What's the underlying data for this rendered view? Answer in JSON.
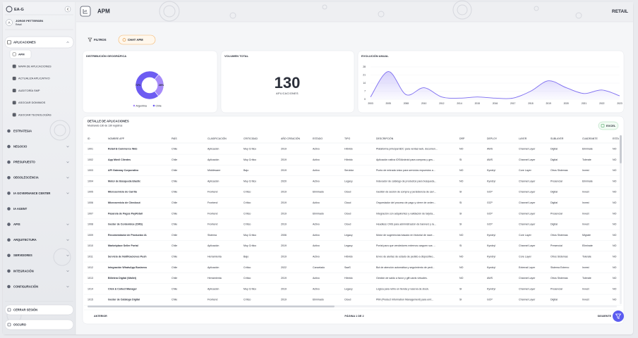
{
  "sidebar": {
    "brand": "EA-G",
    "avatar": "A",
    "user": "JORGE PETTERSEN",
    "role": "Retail",
    "active_section": "APLICACIONES",
    "submenu": [
      "APM",
      "MAPA DE APLICACIONES",
      "ACTUALIZA APLICATIVO",
      "AUDITORÍA SMP",
      "ASOCIAR DOMINIOS",
      "ASOCIAR TECNOLOGÍAS"
    ],
    "menu": [
      "ESTRATEGIA",
      "NEGOCIO",
      "PRESUPUESTO",
      "OBSOLESCENCIA",
      "IA GOVERNANCE CENTER",
      "IA AGENT",
      "APIS",
      "ARQUITECTURA",
      "SERVIDORES",
      "INTEGRACIÓN",
      "CONFIGURACIÓN"
    ],
    "logout": "CERRAR SESIÓN",
    "theme": "OSCURO"
  },
  "header": {
    "title": "APM",
    "tenant": "RETAIL"
  },
  "toolbar": {
    "filters": "FILTROS",
    "chat": "CHAT APM"
  },
  "cards": {
    "geo": {
      "title": "DISTRIBUCIÓN GEOGRÁFICA",
      "type": "pie",
      "slices": [
        {
          "name": "Argentina",
          "value": 28,
          "value_label": "28%",
          "color": "#a78bfa"
        },
        {
          "name": "Chile",
          "value": 72,
          "value_label": "72%",
          "color": "#6d5cf2"
        }
      ]
    },
    "volume": {
      "title": "VOLUMEN TOTAL",
      "value": 130,
      "unit": "APLICACIONES"
    },
    "evolution": {
      "title": "EVOLUCIÓN ANUAL",
      "type": "line",
      "color": "#7c6cf0",
      "grid": true,
      "categories": [
        "2003",
        "2005",
        "2008",
        "2010",
        "2012",
        "2014",
        "2015",
        "2016",
        "2017",
        "2018",
        "2019",
        "2020",
        "2021",
        "2022",
        "2023"
      ],
      "values": [
        2,
        24,
        4,
        10,
        2,
        1,
        2,
        1,
        1,
        7,
        16,
        10,
        5,
        8,
        3
      ],
      "ylim": [
        0,
        28
      ],
      "yticks": [
        0,
        7,
        14,
        21,
        28
      ]
    }
  },
  "table": {
    "title": "DETALLE DE APLICACIONES",
    "subtitle": "Mostrando 130 de 130 registros",
    "export": "EXCEL",
    "columns": [
      "ID",
      "NOMBRE APP",
      "PAÍS",
      "CLASIFICACIÓN",
      "CRITICIDAD",
      "AÑO CREACIÓN",
      "ESTADO",
      "TIPO",
      "DESCRIPCIÓN",
      "DRP",
      "DEPLOY",
      "LAYER",
      "SUBLAYER",
      "CUADRANTE",
      "ESTA"
    ],
    "rows": [
      [
        "1001",
        "Retail E-Commerce Web",
        "Chile",
        "Aplicación",
        "Muy Crítico",
        "2019",
        "Activo",
        "Híbrido",
        "Plataforma principal B2C para ventas web, documen...",
        "NO",
        "AWS",
        "Channel Layer",
        "Digital",
        "Eliminate",
        "NO"
      ],
      [
        "1002",
        "App Móvil Clientes",
        "Chile",
        "Aplicación",
        "Muy Crítico",
        "2019",
        "Activo",
        "Híbrido",
        "Aplicación nativa iOS/Android para compras y ges...",
        "SI",
        "AWS",
        "Channel Layer",
        "Digital",
        "Tolerate",
        "NO"
      ],
      [
        "1003",
        "API Gateway Corporativo",
        "Chile",
        "Middleware",
        "Bajo",
        "2019",
        "Activo",
        "Servidor",
        "Punto de entrada único para servicios expuestos a...",
        "NO",
        "Kyndryl",
        "Core Layer",
        "Otros Sistemas",
        "Invest",
        "NO"
      ],
      [
        "1004",
        "Motor de Búsqueda Elastic",
        "Chile",
        "Aplicación",
        "Muy Crítico",
        "2020",
        "Activo",
        "Legacy",
        "Indexador de catálogo de productos para búsqueda...",
        "NO",
        "Kyndryl",
        "Channel Layer",
        "Presencial",
        "Eliminate",
        "NO"
      ],
      [
        "1005",
        "Microservicio de Carrito",
        "Chile",
        "Frontend",
        "Crítico",
        "2019",
        "Eliminado",
        "Cloud",
        "Gestión de sesión de compra y persistencia de carr...",
        "SI",
        "GCP",
        "Channel Layer",
        "Digital",
        "Invest",
        "NO"
      ],
      [
        "1006",
        "Microservicio de Checkout",
        "Chile",
        "Frontend",
        "Crítico",
        "2019",
        "Activo",
        "Cloud",
        "Orquestador del proceso de pago y cierre de orden...",
        "SI",
        "GCP",
        "Channel Layer",
        "Digital",
        "Invest",
        "NO"
      ],
      [
        "1007",
        "Pasarela de Pagos PayRetail",
        "Chile",
        "Frontend",
        "Crítico",
        "2019",
        "Eliminado",
        "Cloud",
        "Integración con adquirentes y validación de tarjeta...",
        "SI",
        "GCP",
        "Channel Layer",
        "Presencial",
        "Invest",
        "NO"
      ],
      [
        "1008",
        "Gestor de Contenidos (CMS)",
        "Chile",
        "Frontend",
        "Crítico",
        "2019",
        "Activo",
        "Cloud",
        "Headless CMS para administración de banners y la...",
        "SI",
        "GCP",
        "Channel Layer",
        "Digital",
        "Invest",
        "NO"
      ],
      [
        "1009",
        "Recomendador de Productos IA",
        "Chile",
        "Sistema",
        "Muy Crítico",
        "2006",
        "Activo",
        "Legacy",
        "Motor de sugerencias basado en historial de nave...",
        "NO",
        "Kyndryl",
        "Core Layer",
        "Otros Sistemas",
        "Migrate",
        "NO"
      ],
      [
        "1010",
        "Marketplace Seller Portal",
        "Chile",
        "Aplicación",
        "Muy Crítico",
        "2019",
        "Activo",
        "Legacy",
        "Portal para que vendedores externos carguen sus ...",
        "SI",
        "Kyndryl",
        "Channel Layer",
        "Presencial",
        "Eliminate",
        "NO"
      ],
      [
        "1011",
        "Servicio de Notificaciones Push",
        "Chile",
        "Herramienta",
        "Bajo",
        "2019",
        "Activo",
        "Híbrido",
        "Envío de alertas de estado de pedido a dispositivo...",
        "NO",
        "Kyndryl",
        "Core Layer",
        "Otros Sistemas",
        "Tolerate",
        "NO"
      ],
      [
        "1012",
        "Integración WhatsApp Business",
        "Chile",
        "Aplicación",
        "Crítico",
        "2022",
        "Cancelado",
        "SaaS",
        "Bot de atención automática y seguimiento de pedi...",
        "NO",
        "Kyndryl",
        "External Layer",
        "Sistema Externo",
        "Invest",
        "NO"
      ],
      [
        "1013",
        "Billetera Digital (Wallet)",
        "Chile",
        "Herramienta",
        "Crítico",
        "2019",
        "Activo",
        "Híbrido",
        "Gestión de saldo a favor y gift cards virtuales.",
        "NO",
        "AWS",
        "Channel Layer",
        "Otros Sistemas",
        "Tolerate",
        "NO"
      ],
      [
        "1014",
        "Click & Collect Manager",
        "Chile",
        "Aplicación",
        "Muy Crítico",
        "2019",
        "Activo",
        "Legacy",
        "Lógica para retiro en tienda y reserva de stock.",
        "SI",
        "Kyndryl",
        "Channel Layer",
        "Presencial",
        "Invest",
        "NO"
      ],
      [
        "1015",
        "Gestor de Catálogo Digital",
        "Chile",
        "Frontend",
        "Crítico",
        "2019",
        "Eliminado",
        "Cloud",
        "PIM (Product Information Management) para enri...",
        "SI",
        "GCP",
        "Channel Layer",
        "Digital",
        "Invest",
        "NO"
      ]
    ]
  },
  "pagination": {
    "previous": "ANTERIOR",
    "page": "PÁGINA 1 DE 2",
    "next": "SIGUIENTE"
  }
}
